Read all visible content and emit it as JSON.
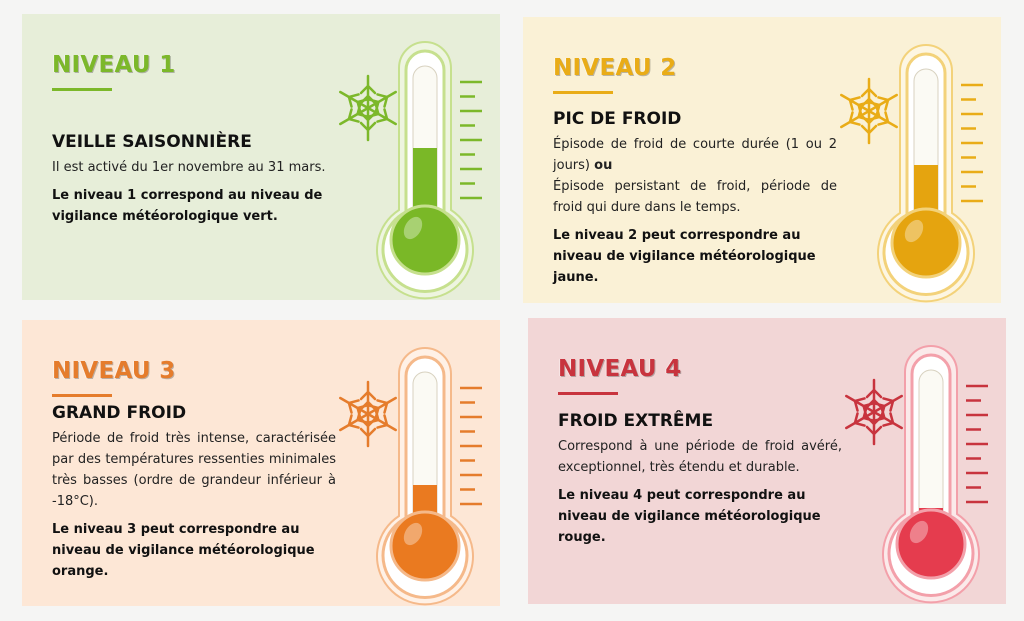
{
  "cards": [
    {
      "level": "NIVEAU 1",
      "title": "VEILLE SAISONNIÈRE",
      "text": [
        "Il est activé du 1er novembre au 31 mars."
      ],
      "note": "Le niveau 1 correspond au niveau de vigilance météorologique vert."
    },
    {
      "level": "NIVEAU 2",
      "title": "PIC DE FROID",
      "text": [
        "Épisode de froid de courte durée  (1 ou 2 jours)",
        "Épisode persistant de froid, période de froid qui dure dans le temps."
      ],
      "connector": "ou",
      "note": "Le niveau 2 peut correspondre au niveau de vigilance météorologique jaune."
    },
    {
      "level": "NIVEAU 3",
      "title": "GRAND FROID",
      "text": [
        "Période de froid très intense, caractérisée par des températures ressenties minimales très basses (ordre de grandeur inférieur à -18°C)."
      ],
      "note": "Le niveau 3 peut correspondre au niveau de vigilance météorologique orange."
    },
    {
      "level": "NIVEAU 4",
      "title": "FROID EXTRÊME",
      "text": [
        "Correspond à une période de froid avéré, exceptionnel, très étendu et durable."
      ],
      "note": "Le niveau 4 peut correspondre au niveau de vigilance météorologique rouge."
    }
  ]
}
